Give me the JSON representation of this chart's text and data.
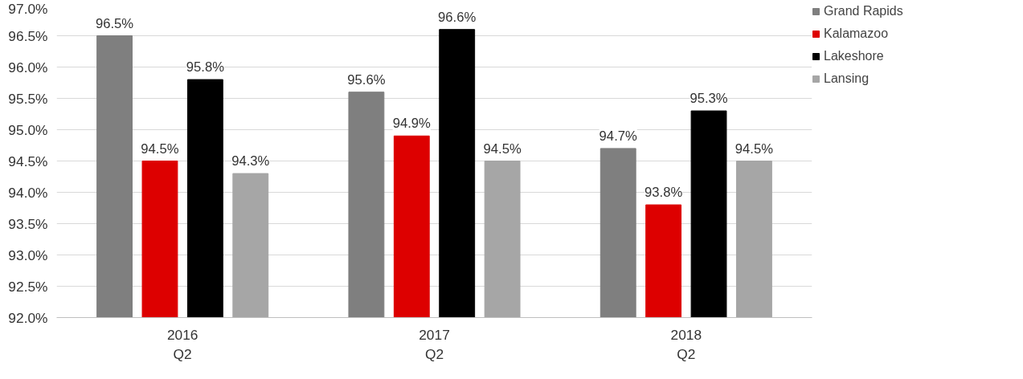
{
  "chart_data": {
    "type": "bar",
    "categories": [
      "2016\nQ2",
      "2017\nQ2",
      "2018\nQ2"
    ],
    "series": [
      {
        "name": "Grand Rapids",
        "color": "#7f7f7f",
        "values": [
          96.5,
          95.6,
          94.7
        ],
        "value_labels": [
          "96.5%",
          "95.6%",
          "94.7%"
        ]
      },
      {
        "name": "Kalamazoo",
        "color": "#dd0000",
        "values": [
          94.5,
          94.9,
          93.8
        ],
        "value_labels": [
          "94.5%",
          "94.9%",
          "93.8%"
        ]
      },
      {
        "name": "Lakeshore",
        "color": "#000000",
        "values": [
          95.8,
          96.6,
          95.3
        ],
        "value_labels": [
          "95.8%",
          "96.6%",
          "95.3%"
        ]
      },
      {
        "name": "Lansing",
        "color": "#a6a6a6",
        "values": [
          94.3,
          94.5,
          94.5
        ],
        "value_labels": [
          "94.3%",
          "94.5%",
          "94.5%"
        ]
      }
    ],
    "ylim": [
      92.0,
      97.0
    ],
    "yticks": [
      {
        "value": 92.0,
        "label": "92.0%"
      },
      {
        "value": 92.5,
        "label": "92.5%"
      },
      {
        "value": 93.0,
        "label": "93.0%"
      },
      {
        "value": 93.5,
        "label": "93.5%"
      },
      {
        "value": 94.0,
        "label": "94.0%"
      },
      {
        "value": 94.5,
        "label": "94.5%"
      },
      {
        "value": 95.0,
        "label": "95.0%"
      },
      {
        "value": 95.5,
        "label": "95.5%"
      },
      {
        "value": 96.0,
        "label": "96.0%"
      },
      {
        "value": 96.5,
        "label": "96.5%"
      },
      {
        "value": 97.0,
        "label": "97.0%"
      }
    ],
    "grid": "y",
    "legend": "right"
  }
}
